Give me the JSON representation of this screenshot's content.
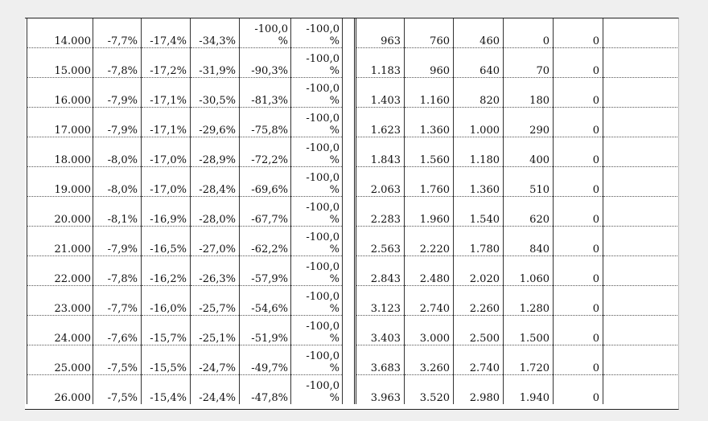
{
  "rows": [
    {
      "value": "14.000",
      "p1": "-7,7%",
      "p2": "-17,4%",
      "p3": "-34,3%",
      "p4": "-100,0 %",
      "p5": "-100,0 %",
      "n1": "963",
      "n2": "760",
      "n3": "460",
      "n4": "0",
      "n5": "0"
    },
    {
      "value": "15.000",
      "p1": "-7,8%",
      "p2": "-17,2%",
      "p3": "-31,9%",
      "p4": "-90,3%",
      "p5": "-100,0 %",
      "n1": "1.183",
      "n2": "960",
      "n3": "640",
      "n4": "70",
      "n5": "0"
    },
    {
      "value": "16.000",
      "p1": "-7,9%",
      "p2": "-17,1%",
      "p3": "-30,5%",
      "p4": "-81,3%",
      "p5": "-100,0 %",
      "n1": "1.403",
      "n2": "1.160",
      "n3": "820",
      "n4": "180",
      "n5": "0"
    },
    {
      "value": "17.000",
      "p1": "-7,9%",
      "p2": "-17,1%",
      "p3": "-29,6%",
      "p4": "-75,8%",
      "p5": "-100,0 %",
      "n1": "1.623",
      "n2": "1.360",
      "n3": "1.000",
      "n4": "290",
      "n5": "0"
    },
    {
      "value": "18.000",
      "p1": "-8,0%",
      "p2": "-17,0%",
      "p3": "-28,9%",
      "p4": "-72,2%",
      "p5": "-100,0 %",
      "n1": "1.843",
      "n2": "1.560",
      "n3": "1.180",
      "n4": "400",
      "n5": "0"
    },
    {
      "value": "19.000",
      "p1": "-8,0%",
      "p2": "-17,0%",
      "p3": "-28,4%",
      "p4": "-69,6%",
      "p5": "-100,0 %",
      "n1": "2.063",
      "n2": "1.760",
      "n3": "1.360",
      "n4": "510",
      "n5": "0"
    },
    {
      "value": "20.000",
      "p1": "-8,1%",
      "p2": "-16,9%",
      "p3": "-28,0%",
      "p4": "-67,7%",
      "p5": "-100,0 %",
      "n1": "2.283",
      "n2": "1.960",
      "n3": "1.540",
      "n4": "620",
      "n5": "0"
    },
    {
      "value": "21.000",
      "p1": "-7,9%",
      "p2": "-16,5%",
      "p3": "-27,0%",
      "p4": "-62,2%",
      "p5": "-100,0 %",
      "n1": "2.563",
      "n2": "2.220",
      "n3": "1.780",
      "n4": "840",
      "n5": "0"
    },
    {
      "value": "22.000",
      "p1": "-7,8%",
      "p2": "-16,2%",
      "p3": "-26,3%",
      "p4": "-57,9%",
      "p5": "-100,0 %",
      "n1": "2.843",
      "n2": "2.480",
      "n3": "2.020",
      "n4": "1.060",
      "n5": "0"
    },
    {
      "value": "23.000",
      "p1": "-7,7%",
      "p2": "-16,0%",
      "p3": "-25,7%",
      "p4": "-54,6%",
      "p5": "-100,0 %",
      "n1": "3.123",
      "n2": "2.740",
      "n3": "2.260",
      "n4": "1.280",
      "n5": "0"
    },
    {
      "value": "24.000",
      "p1": "-7,6%",
      "p2": "-15,7%",
      "p3": "-25,1%",
      "p4": "-51,9%",
      "p5": "-100,0 %",
      "n1": "3.403",
      "n2": "3.000",
      "n3": "2.500",
      "n4": "1.500",
      "n5": "0"
    },
    {
      "value": "25.000",
      "p1": "-7,5%",
      "p2": "-15,5%",
      "p3": "-24,7%",
      "p4": "-49,7%",
      "p5": "-100,0 %",
      "n1": "3.683",
      "n2": "3.260",
      "n3": "2.740",
      "n4": "1.720",
      "n5": "0"
    },
    {
      "value": "26.000",
      "p1": "-7,5%",
      "p2": "-15,4%",
      "p3": "-24,4%",
      "p4": "-47,8%",
      "p5": "-100,0 %",
      "n1": "3.963",
      "n2": "3.520",
      "n3": "2.980",
      "n4": "1.940",
      "n5": "0"
    }
  ]
}
